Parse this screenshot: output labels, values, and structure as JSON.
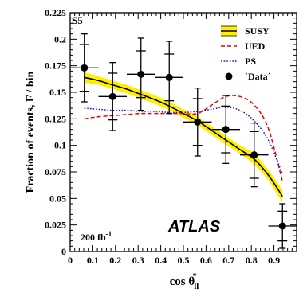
{
  "chart_data": {
    "type": "line",
    "panel_label": "S5",
    "xlabel_main": "cos θ",
    "xlabel_sup": "*",
    "xlabel_sub": "ll",
    "ylabel": "Fraction of events, F / bin",
    "xlim": [
      0,
      1
    ],
    "ylim": [
      0,
      0.225
    ],
    "xticks": [
      0,
      0.1,
      0.2,
      0.3,
      0.4,
      0.5,
      0.6,
      0.7,
      0.8,
      0.9
    ],
    "xtick_labels": [
      "0",
      "0.1",
      "0.2",
      "0.3",
      "0.4",
      "0.5",
      "0.6",
      "0.7",
      "0.8",
      "0.9"
    ],
    "yticks": [
      0,
      0.025,
      0.05,
      0.075,
      0.1,
      0.125,
      0.15,
      0.175,
      0.2,
      0.225
    ],
    "ytick_labels": [
      "0",
      "0.025",
      "0.05",
      "0.075",
      "0.1",
      "0.125",
      "0.15",
      "0.175",
      "0.2",
      "0.225"
    ],
    "atlas_label": "ATLAS",
    "luminosity_text": "200 fb",
    "luminosity_sup": "-1",
    "legend_position": "top-right",
    "series": [
      {
        "name": "SUSY",
        "style": "solid-with-band",
        "color": "#000000",
        "band_color": "#ffee00",
        "x": [
          0.0625,
          0.125,
          0.1875,
          0.25,
          0.3125,
          0.375,
          0.4375,
          0.5,
          0.5625,
          0.625,
          0.6875,
          0.75,
          0.8125,
          0.875,
          0.9375
        ],
        "y": [
          0.164,
          0.161,
          0.157,
          0.153,
          0.148,
          0.143,
          0.137,
          0.13,
          0.123,
          0.114,
          0.105,
          0.096,
          0.087,
          0.072,
          0.052
        ],
        "band_halfwidth": [
          0.005,
          0.004,
          0.004,
          0.004,
          0.004,
          0.004,
          0.004,
          0.004,
          0.004,
          0.004,
          0.004,
          0.004,
          0.005,
          0.005,
          0.006
        ]
      },
      {
        "name": "UED",
        "style": "dashed",
        "color": "#ee0000",
        "x": [
          0.0625,
          0.125,
          0.1875,
          0.25,
          0.3125,
          0.375,
          0.4375,
          0.5,
          0.5625,
          0.625,
          0.6875,
          0.75,
          0.8125,
          0.875,
          0.9375
        ],
        "y": [
          0.125,
          0.127,
          0.128,
          0.129,
          0.13,
          0.13,
          0.13,
          0.13,
          0.13,
          0.138,
          0.146,
          0.146,
          0.138,
          0.116,
          0.066
        ]
      },
      {
        "name": "PS",
        "style": "dotted",
        "color": "#1a1acc",
        "x": [
          0.0625,
          0.125,
          0.1875,
          0.25,
          0.3125,
          0.375,
          0.4375,
          0.5,
          0.5625,
          0.625,
          0.6875,
          0.75,
          0.8125,
          0.875,
          0.9375
        ],
        "y": [
          0.135,
          0.134,
          0.133,
          0.133,
          0.132,
          0.132,
          0.131,
          0.131,
          0.132,
          0.134,
          0.136,
          0.133,
          0.123,
          0.105,
          0.073
        ]
      },
      {
        "name": "`Data´",
        "style": "points",
        "color": "#000000",
        "x": [
          0.0625,
          0.1875,
          0.3125,
          0.4375,
          0.5625,
          0.6875,
          0.8125,
          0.9375
        ],
        "y": [
          0.173,
          0.146,
          0.167,
          0.164,
          0.122,
          0.115,
          0.091,
          0.024
        ],
        "xerr": [
          0.0625,
          0.0625,
          0.0625,
          0.0625,
          0.0625,
          0.0625,
          0.0625,
          0.0625
        ],
        "yerr_stat": [
          0.022,
          0.022,
          0.022,
          0.022,
          0.022,
          0.022,
          0.022,
          0.014
        ],
        "yerr_total": [
          0.032,
          0.032,
          0.034,
          0.034,
          0.032,
          0.032,
          0.03,
          0.021
        ]
      }
    ]
  }
}
